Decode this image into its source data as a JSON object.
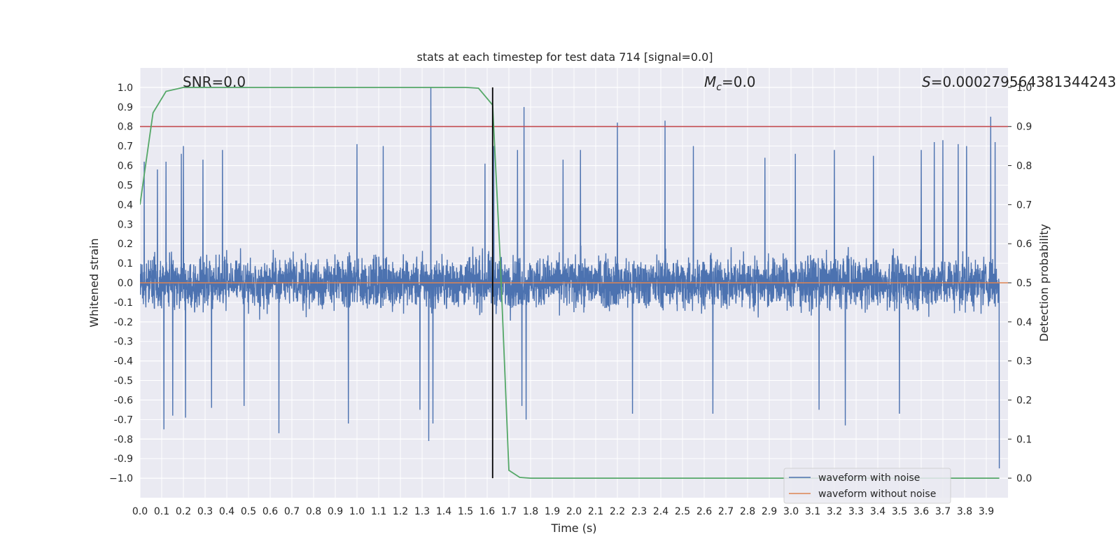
{
  "chart_data": {
    "type": "line",
    "title": "stats at each timestep for test data 714 [signal=0.0]",
    "xlabel": "Time (s)",
    "ylabel": "Whitened strain",
    "ylabel_right": "Detection probability",
    "xlim": [
      0.0,
      4.0
    ],
    "ylim": [
      -1.1,
      1.1
    ],
    "ylim_right": [
      -0.05,
      1.05
    ],
    "x_ticks": [
      "0.0",
      "0.1",
      "0.2",
      "0.3",
      "0.4",
      "0.5",
      "0.6",
      "0.7",
      "0.8",
      "0.9",
      "1.0",
      "1.1",
      "1.2",
      "1.3",
      "1.4",
      "1.5",
      "1.6",
      "1.7",
      "1.8",
      "1.9",
      "2.0",
      "2.1",
      "2.2",
      "2.3",
      "2.4",
      "2.5",
      "2.6",
      "2.7",
      "2.8",
      "2.9",
      "3.0",
      "3.1",
      "3.2",
      "3.3",
      "3.4",
      "3.5",
      "3.6",
      "3.7",
      "3.8",
      "3.9"
    ],
    "y_ticks": [
      "1.0",
      "0.9",
      "0.8",
      "0.7",
      "0.6",
      "0.5",
      "0.4",
      "0.3",
      "0.2",
      "0.1",
      "0.0",
      "-0.1",
      "-0.2",
      "-0.3",
      "-0.4",
      "-0.5",
      "-0.6",
      "-0.7",
      "-0.8",
      "-0.9",
      "−1.0"
    ],
    "y_ticks_right": [
      "1.0",
      "0.9",
      "0.8",
      "0.7",
      "0.6",
      "0.5",
      "0.4",
      "0.3",
      "0.2",
      "0.1",
      "0.0"
    ],
    "annotations": {
      "snr": "SNR=0.0",
      "mc_symbol": "M",
      "mc_sub": "c",
      "mc_value": "=0.0",
      "s_symbol": "S",
      "s_value": "=0.00027956438134424",
      "s_tail": "3"
    },
    "threshold_right": 0.9,
    "threshold_color": "#c44e52",
    "vline_time": 1.625,
    "vline_color": "#000000",
    "series": [
      {
        "name": "waveform with noise",
        "color": "#4c72b0",
        "kind": "noise",
        "points": 4096,
        "typical_range": [
          -0.3,
          0.35
        ],
        "spikes": [
          {
            "t": 0.02,
            "v": 0.62
          },
          {
            "t": 0.08,
            "v": 0.58
          },
          {
            "t": 0.11,
            "v": -0.75
          },
          {
            "t": 0.12,
            "v": 0.62
          },
          {
            "t": 0.15,
            "v": -0.68
          },
          {
            "t": 0.19,
            "v": 0.66
          },
          {
            "t": 0.2,
            "v": 0.7
          },
          {
            "t": 0.21,
            "v": -0.69
          },
          {
            "t": 0.29,
            "v": 0.63
          },
          {
            "t": 0.33,
            "v": -0.64
          },
          {
            "t": 0.38,
            "v": 0.68
          },
          {
            "t": 0.48,
            "v": -0.63
          },
          {
            "t": 0.64,
            "v": -0.77
          },
          {
            "t": 0.96,
            "v": -0.72
          },
          {
            "t": 1.0,
            "v": 0.71
          },
          {
            "t": 1.12,
            "v": 0.7
          },
          {
            "t": 1.29,
            "v": -0.65
          },
          {
            "t": 1.33,
            "v": -0.81
          },
          {
            "t": 1.34,
            "v": 1.0
          },
          {
            "t": 1.35,
            "v": -0.72
          },
          {
            "t": 1.59,
            "v": 0.61
          },
          {
            "t": 1.63,
            "v": 0.7
          },
          {
            "t": 1.74,
            "v": 0.68
          },
          {
            "t": 1.76,
            "v": -0.63
          },
          {
            "t": 1.77,
            "v": 0.9
          },
          {
            "t": 1.78,
            "v": -0.7
          },
          {
            "t": 1.95,
            "v": 0.63
          },
          {
            "t": 2.03,
            "v": 0.68
          },
          {
            "t": 2.2,
            "v": 0.82
          },
          {
            "t": 2.27,
            "v": -0.67
          },
          {
            "t": 2.42,
            "v": 0.83
          },
          {
            "t": 2.55,
            "v": 0.7
          },
          {
            "t": 2.64,
            "v": -0.67
          },
          {
            "t": 2.88,
            "v": 0.64
          },
          {
            "t": 3.02,
            "v": 0.66
          },
          {
            "t": 3.13,
            "v": -0.65
          },
          {
            "t": 3.2,
            "v": 0.68
          },
          {
            "t": 3.25,
            "v": -0.73
          },
          {
            "t": 3.38,
            "v": 0.65
          },
          {
            "t": 3.5,
            "v": -0.67
          },
          {
            "t": 3.6,
            "v": 0.68
          },
          {
            "t": 3.66,
            "v": 0.72
          },
          {
            "t": 3.7,
            "v": 0.73
          },
          {
            "t": 3.77,
            "v": 0.71
          },
          {
            "t": 3.81,
            "v": 0.7
          },
          {
            "t": 3.92,
            "v": 0.85
          },
          {
            "t": 3.94,
            "v": 0.72
          },
          {
            "t": 3.96,
            "v": -0.95
          }
        ]
      },
      {
        "name": "waveform without noise",
        "color": "#dd8452",
        "kind": "flat",
        "value": 0.0
      },
      {
        "name": "detection probability",
        "color": "#55a868",
        "axis": "right",
        "x": [
          0.0,
          0.06,
          0.12,
          0.2,
          0.5,
          1.0,
          1.5,
          1.56,
          1.625,
          1.66,
          1.7,
          1.75,
          1.8,
          2.5,
          3.0,
          3.5,
          3.96
        ],
        "values": [
          0.7,
          0.935,
          0.99,
          1.0,
          1.0,
          1.0,
          1.0,
          0.998,
          0.955,
          0.56,
          0.02,
          0.002,
          0.0,
          0.0,
          0.0,
          0.0,
          0.0
        ]
      }
    ],
    "legend": {
      "placement": "bottom-right",
      "entries": [
        {
          "label": "waveform with noise",
          "color": "#4c72b0"
        },
        {
          "label": "waveform without noise",
          "color": "#dd8452"
        }
      ]
    },
    "style": {
      "axes_bg": "#eaeaf2",
      "grid_color": "#ffffff",
      "grid": true
    }
  }
}
